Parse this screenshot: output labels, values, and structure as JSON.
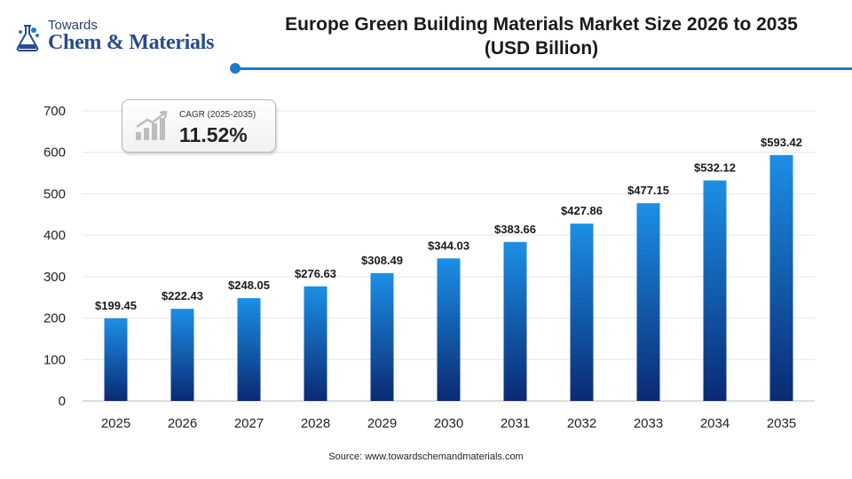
{
  "logo": {
    "line1": "Towards",
    "line2": "Chem & Materials"
  },
  "title": {
    "line1": "Europe Green Building Materials Market Size 2026 to 2035",
    "line2": "(USD Billion)"
  },
  "cagr": {
    "label": "CAGR (2025-2035)",
    "value": "11.52%"
  },
  "source": "Source: www.towardschemandmaterials.com",
  "colors": {
    "bar_top": "#1c8fe6",
    "bar_bottom": "#0a2a73",
    "accent": "#1e7bc4",
    "grid": "#e6e6e6"
  },
  "chart_data": {
    "type": "bar",
    "categories": [
      "2025",
      "2026",
      "2027",
      "2028",
      "2029",
      "2030",
      "2031",
      "2032",
      "2033",
      "2034",
      "2035"
    ],
    "values": [
      199.45,
      222.43,
      248.05,
      276.63,
      308.49,
      344.03,
      383.66,
      427.86,
      477.15,
      532.12,
      593.42
    ],
    "data_labels": [
      "$199.45",
      "$222.43",
      "$248.05",
      "$276.63",
      "$308.49",
      "$344.03",
      "$383.66",
      "$427.86",
      "$477.15",
      "$532.12",
      "$593.42"
    ],
    "yticks": [
      0,
      100,
      200,
      300,
      400,
      500,
      600,
      700
    ],
    "ylim": [
      0,
      700
    ],
    "grid": true
  }
}
